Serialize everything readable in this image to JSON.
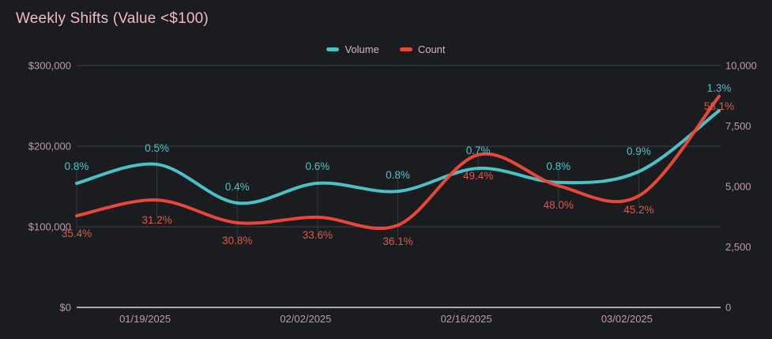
{
  "title": "Weekly Shifts (Value <$100)",
  "legend": {
    "items": [
      {
        "label": "Volume",
        "color": "#4ac1c5"
      },
      {
        "label": "Count",
        "color": "#e8473a"
      }
    ]
  },
  "colors": {
    "background": "#1a1c20",
    "title_text": "#f1bac7",
    "axis_tick_text": "#bd9da4",
    "legend_text": "#d2b7be",
    "gridline": "#3e4246",
    "baseline_axis": "#d8dadb",
    "dropline": "#35383c",
    "volume_series": "#4ac1c5",
    "volume_label_text": "#4cc5c9",
    "count_series": "#e8473a",
    "count_label_text": "#dd5a4c"
  },
  "chart_data": {
    "type": "line",
    "title": "Weekly Shifts (Value <$100)",
    "grid": true,
    "legend_position": "top-center",
    "num_points": 9,
    "x_tick_labels": [
      "01/19/2025",
      "02/02/2025",
      "02/16/2025",
      "03/02/2025"
    ],
    "x_tick_point_indices": [
      1,
      3,
      5,
      7
    ],
    "left_axis": {
      "ticks": [
        "$0",
        "$100,000",
        "$200,000",
        "$300,000"
      ],
      "tick_values": [
        0,
        100000,
        200000,
        300000
      ],
      "range": [
        0,
        300000
      ]
    },
    "right_axis": {
      "ticks": [
        "0",
        "2,500",
        "5,000",
        "7,500",
        "10,000"
      ],
      "tick_values": [
        0,
        2500,
        5000,
        7500,
        10000
      ],
      "range": [
        0,
        10000
      ]
    },
    "series": [
      {
        "name": "Volume",
        "axis": "left",
        "color": "#4ac1c5",
        "label_color": "#4cc5c9",
        "values": [
          154000,
          177500,
          129500,
          154000,
          144000,
          172500,
          155000,
          168500,
          244000
        ],
        "point_labels": [
          "0.8%",
          "0.5%",
          "0.4%",
          "0.6%",
          "0.8%",
          "0.7%",
          "0.8%",
          "0.9%",
          "1.3%"
        ]
      },
      {
        "name": "Count",
        "axis": "right",
        "color": "#e8473a",
        "label_color": "#dd5a4c",
        "values": [
          3790,
          4440,
          3500,
          3730,
          3400,
          6310,
          5030,
          4610,
          8730
        ],
        "point_labels": [
          "35.4%",
          "31.2%",
          "30.8%",
          "33.6%",
          "36.1%",
          "49.4%",
          "48.0%",
          "45.2%",
          "58.1%"
        ]
      }
    ]
  }
}
